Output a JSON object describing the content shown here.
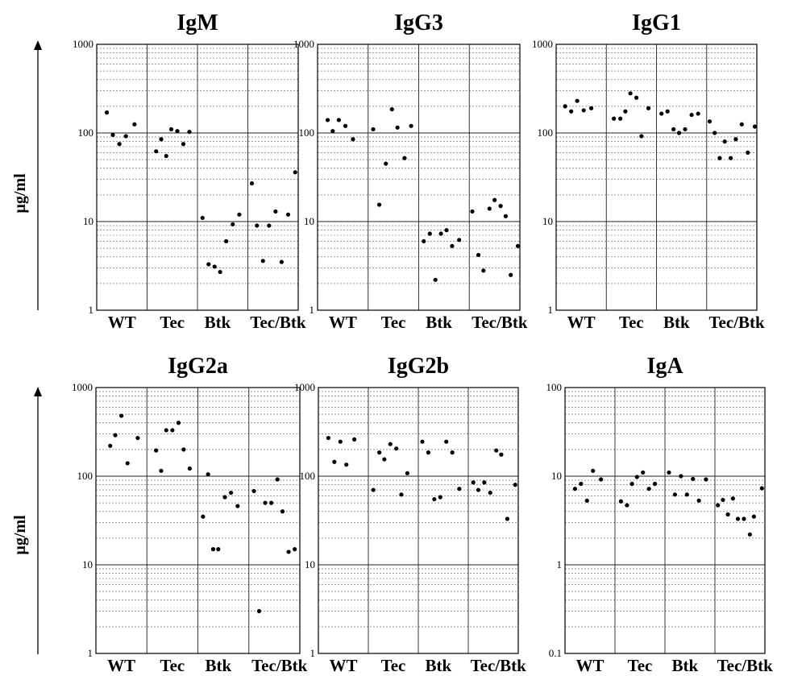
{
  "figure": {
    "y_axis_label": "µg/ml",
    "categories": [
      "WT",
      "Tec",
      "Btk",
      "Tec/Btk"
    ]
  },
  "chart_data": [
    {
      "type": "scatter",
      "title": "IgM",
      "ylabel": "µg/ml",
      "yscale": "log",
      "ylim": [
        1,
        1000
      ],
      "yticks": [
        "1",
        "10",
        "100",
        "1000"
      ],
      "categories": [
        "WT",
        "Tec",
        "Btk",
        "Tec/Btk"
      ],
      "grid": true,
      "points": [
        {
          "category": "WT",
          "x": 0.2,
          "y": 170
        },
        {
          "category": "WT",
          "x": 0.32,
          "y": 95
        },
        {
          "category": "WT",
          "x": 0.45,
          "y": 75
        },
        {
          "category": "WT",
          "x": 0.58,
          "y": 92
        },
        {
          "category": "WT",
          "x": 0.75,
          "y": 125
        },
        {
          "category": "Tec",
          "x": 0.18,
          "y": 62
        },
        {
          "category": "Tec",
          "x": 0.28,
          "y": 85
        },
        {
          "category": "Tec",
          "x": 0.38,
          "y": 55
        },
        {
          "category": "Tec",
          "x": 0.48,
          "y": 110
        },
        {
          "category": "Tec",
          "x": 0.6,
          "y": 105
        },
        {
          "category": "Tec",
          "x": 0.72,
          "y": 75
        },
        {
          "category": "Tec",
          "x": 0.84,
          "y": 103
        },
        {
          "category": "Btk",
          "x": 0.1,
          "y": 11
        },
        {
          "category": "Btk",
          "x": 0.22,
          "y": 3.3
        },
        {
          "category": "Btk",
          "x": 0.34,
          "y": 3.1
        },
        {
          "category": "Btk",
          "x": 0.45,
          "y": 2.7
        },
        {
          "category": "Btk",
          "x": 0.57,
          "y": 6
        },
        {
          "category": "Btk",
          "x": 0.7,
          "y": 9.3
        },
        {
          "category": "Btk",
          "x": 0.83,
          "y": 12
        },
        {
          "category": "Tec/Btk",
          "x": 0.08,
          "y": 27
        },
        {
          "category": "Tec/Btk",
          "x": 0.18,
          "y": 9
        },
        {
          "category": "Tec/Btk",
          "x": 0.3,
          "y": 3.6
        },
        {
          "category": "Tec/Btk",
          "x": 0.42,
          "y": 9
        },
        {
          "category": "Tec/Btk",
          "x": 0.55,
          "y": 13
        },
        {
          "category": "Tec/Btk",
          "x": 0.67,
          "y": 3.5
        },
        {
          "category": "Tec/Btk",
          "x": 0.8,
          "y": 12
        },
        {
          "category": "Tec/Btk",
          "x": 0.94,
          "y": 36
        }
      ]
    },
    {
      "type": "scatter",
      "title": "IgG3",
      "ylabel": "",
      "yscale": "log",
      "ylim": [
        1,
        1000
      ],
      "yticks": [
        "1",
        "10",
        "100",
        "1000"
      ],
      "categories": [
        "WT",
        "Tec",
        "Btk",
        "Tec/Btk"
      ],
      "grid": true,
      "points": [
        {
          "category": "WT",
          "x": 0.2,
          "y": 140
        },
        {
          "category": "WT",
          "x": 0.3,
          "y": 105
        },
        {
          "category": "WT",
          "x": 0.42,
          "y": 140
        },
        {
          "category": "WT",
          "x": 0.55,
          "y": 120
        },
        {
          "category": "WT",
          "x": 0.7,
          "y": 85
        },
        {
          "category": "Tec",
          "x": 0.1,
          "y": 110
        },
        {
          "category": "Tec",
          "x": 0.22,
          "y": 15.5
        },
        {
          "category": "Tec",
          "x": 0.35,
          "y": 45
        },
        {
          "category": "Tec",
          "x": 0.47,
          "y": 185
        },
        {
          "category": "Tec",
          "x": 0.58,
          "y": 115
        },
        {
          "category": "Tec",
          "x": 0.72,
          "y": 52
        },
        {
          "category": "Tec",
          "x": 0.85,
          "y": 120
        },
        {
          "category": "Btk",
          "x": 0.1,
          "y": 6
        },
        {
          "category": "Btk",
          "x": 0.22,
          "y": 7.3
        },
        {
          "category": "Btk",
          "x": 0.33,
          "y": 2.2
        },
        {
          "category": "Btk",
          "x": 0.44,
          "y": 7.3
        },
        {
          "category": "Btk",
          "x": 0.55,
          "y": 8
        },
        {
          "category": "Btk",
          "x": 0.66,
          "y": 5.3
        },
        {
          "category": "Btk",
          "x": 0.8,
          "y": 6.2
        },
        {
          "category": "Tec/Btk",
          "x": 0.06,
          "y": 13
        },
        {
          "category": "Tec/Btk",
          "x": 0.18,
          "y": 4.2
        },
        {
          "category": "Tec/Btk",
          "x": 0.28,
          "y": 2.8
        },
        {
          "category": "Tec/Btk",
          "x": 0.4,
          "y": 14
        },
        {
          "category": "Tec/Btk",
          "x": 0.5,
          "y": 17.5
        },
        {
          "category": "Tec/Btk",
          "x": 0.62,
          "y": 15
        },
        {
          "category": "Tec/Btk",
          "x": 0.72,
          "y": 11.5
        },
        {
          "category": "Tec/Btk",
          "x": 0.82,
          "y": 2.5
        },
        {
          "category": "Tec/Btk",
          "x": 0.96,
          "y": 5.3
        }
      ]
    },
    {
      "type": "scatter",
      "title": "IgG1",
      "ylabel": "",
      "yscale": "log",
      "ylim": [
        1,
        1000
      ],
      "yticks": [
        "1",
        "10",
        "100",
        "1000"
      ],
      "categories": [
        "WT",
        "Tec",
        "Btk",
        "Tec/Btk"
      ],
      "grid": true,
      "points": [
        {
          "category": "WT",
          "x": 0.18,
          "y": 200
        },
        {
          "category": "WT",
          "x": 0.3,
          "y": 175
        },
        {
          "category": "WT",
          "x": 0.42,
          "y": 230
        },
        {
          "category": "WT",
          "x": 0.55,
          "y": 180
        },
        {
          "category": "WT",
          "x": 0.7,
          "y": 190
        },
        {
          "category": "Tec",
          "x": 0.15,
          "y": 145
        },
        {
          "category": "Tec",
          "x": 0.28,
          "y": 145
        },
        {
          "category": "Tec",
          "x": 0.38,
          "y": 175
        },
        {
          "category": "Tec",
          "x": 0.48,
          "y": 280
        },
        {
          "category": "Tec",
          "x": 0.6,
          "y": 250
        },
        {
          "category": "Tec",
          "x": 0.7,
          "y": 92
        },
        {
          "category": "Tec",
          "x": 0.84,
          "y": 190
        },
        {
          "category": "Btk",
          "x": 0.1,
          "y": 165
        },
        {
          "category": "Btk",
          "x": 0.22,
          "y": 175
        },
        {
          "category": "Btk",
          "x": 0.34,
          "y": 110
        },
        {
          "category": "Btk",
          "x": 0.45,
          "y": 100
        },
        {
          "category": "Btk",
          "x": 0.57,
          "y": 110
        },
        {
          "category": "Btk",
          "x": 0.7,
          "y": 160
        },
        {
          "category": "Btk",
          "x": 0.83,
          "y": 165
        },
        {
          "category": "Tec/Btk",
          "x": 0.06,
          "y": 135
        },
        {
          "category": "Tec/Btk",
          "x": 0.16,
          "y": 100
        },
        {
          "category": "Tec/Btk",
          "x": 0.26,
          "y": 52
        },
        {
          "category": "Tec/Btk",
          "x": 0.36,
          "y": 80
        },
        {
          "category": "Tec/Btk",
          "x": 0.48,
          "y": 52
        },
        {
          "category": "Tec/Btk",
          "x": 0.58,
          "y": 85
        },
        {
          "category": "Tec/Btk",
          "x": 0.7,
          "y": 125
        },
        {
          "category": "Tec/Btk",
          "x": 0.82,
          "y": 60
        },
        {
          "category": "Tec/Btk",
          "x": 0.96,
          "y": 118
        }
      ]
    },
    {
      "type": "scatter",
      "title": "IgG2a",
      "ylabel": "µg/ml",
      "yscale": "log",
      "ylim": [
        1,
        1000
      ],
      "yticks": [
        "1",
        "10",
        "100",
        "1000"
      ],
      "categories": [
        "WT",
        "Tec",
        "Btk",
        "Tec/Btk"
      ],
      "grid": true,
      "points": [
        {
          "category": "WT",
          "x": 0.28,
          "y": 220
        },
        {
          "category": "WT",
          "x": 0.38,
          "y": 290
        },
        {
          "category": "WT",
          "x": 0.5,
          "y": 480
        },
        {
          "category": "WT",
          "x": 0.62,
          "y": 140
        },
        {
          "category": "WT",
          "x": 0.82,
          "y": 270
        },
        {
          "category": "Tec",
          "x": 0.18,
          "y": 195
        },
        {
          "category": "Tec",
          "x": 0.28,
          "y": 115
        },
        {
          "category": "Tec",
          "x": 0.38,
          "y": 330
        },
        {
          "category": "Tec",
          "x": 0.5,
          "y": 330
        },
        {
          "category": "Tec",
          "x": 0.62,
          "y": 400
        },
        {
          "category": "Tec",
          "x": 0.72,
          "y": 200
        },
        {
          "category": "Tec",
          "x": 0.84,
          "y": 122
        },
        {
          "category": "Btk",
          "x": 0.1,
          "y": 35
        },
        {
          "category": "Btk",
          "x": 0.2,
          "y": 105
        },
        {
          "category": "Btk",
          "x": 0.3,
          "y": 15
        },
        {
          "category": "Btk",
          "x": 0.4,
          "y": 15
        },
        {
          "category": "Btk",
          "x": 0.53,
          "y": 58
        },
        {
          "category": "Btk",
          "x": 0.65,
          "y": 65
        },
        {
          "category": "Btk",
          "x": 0.78,
          "y": 46
        },
        {
          "category": "Tec/Btk",
          "x": 0.1,
          "y": 68
        },
        {
          "category": "Tec/Btk",
          "x": 0.2,
          "y": 3
        },
        {
          "category": "Tec/Btk",
          "x": 0.32,
          "y": 50
        },
        {
          "category": "Tec/Btk",
          "x": 0.44,
          "y": 50
        },
        {
          "category": "Tec/Btk",
          "x": 0.56,
          "y": 92
        },
        {
          "category": "Tec/Btk",
          "x": 0.66,
          "y": 40
        },
        {
          "category": "Tec/Btk",
          "x": 0.78,
          "y": 14
        },
        {
          "category": "Tec/Btk",
          "x": 0.9,
          "y": 15
        }
      ]
    },
    {
      "type": "scatter",
      "title": "IgG2b",
      "ylabel": "",
      "yscale": "log",
      "ylim": [
        1,
        1000
      ],
      "yticks": [
        "1",
        "10",
        "100",
        "1000"
      ],
      "categories": [
        "WT",
        "Tec",
        "Btk",
        "Tec/Btk"
      ],
      "grid": true,
      "points": [
        {
          "category": "WT",
          "x": 0.2,
          "y": 270
        },
        {
          "category": "WT",
          "x": 0.32,
          "y": 145
        },
        {
          "category": "WT",
          "x": 0.44,
          "y": 245
        },
        {
          "category": "WT",
          "x": 0.56,
          "y": 135
        },
        {
          "category": "WT",
          "x": 0.72,
          "y": 260
        },
        {
          "category": "Tec",
          "x": 0.1,
          "y": 70
        },
        {
          "category": "Tec",
          "x": 0.22,
          "y": 185
        },
        {
          "category": "Tec",
          "x": 0.32,
          "y": 155
        },
        {
          "category": "Tec",
          "x": 0.44,
          "y": 230
        },
        {
          "category": "Tec",
          "x": 0.56,
          "y": 205
        },
        {
          "category": "Tec",
          "x": 0.66,
          "y": 62
        },
        {
          "category": "Tec",
          "x": 0.78,
          "y": 108
        },
        {
          "category": "Btk",
          "x": 0.08,
          "y": 245
        },
        {
          "category": "Btk",
          "x": 0.2,
          "y": 185
        },
        {
          "category": "Btk",
          "x": 0.32,
          "y": 55
        },
        {
          "category": "Btk",
          "x": 0.44,
          "y": 58
        },
        {
          "category": "Btk",
          "x": 0.56,
          "y": 245
        },
        {
          "category": "Btk",
          "x": 0.68,
          "y": 185
        },
        {
          "category": "Btk",
          "x": 0.82,
          "y": 72
        },
        {
          "category": "Tec/Btk",
          "x": 0.1,
          "y": 85
        },
        {
          "category": "Tec/Btk",
          "x": 0.2,
          "y": 70
        },
        {
          "category": "Tec/Btk",
          "x": 0.32,
          "y": 85
        },
        {
          "category": "Tec/Btk",
          "x": 0.44,
          "y": 65
        },
        {
          "category": "Tec/Btk",
          "x": 0.56,
          "y": 195
        },
        {
          "category": "Tec/Btk",
          "x": 0.66,
          "y": 175
        },
        {
          "category": "Tec/Btk",
          "x": 0.78,
          "y": 33
        },
        {
          "category": "Tec/Btk",
          "x": 0.94,
          "y": 80
        }
      ]
    },
    {
      "type": "scatter",
      "title": "IgA",
      "ylabel": "",
      "yscale": "log",
      "ylim": [
        0.1,
        100
      ],
      "yticks": [
        "0.1",
        "1",
        "10",
        "100"
      ],
      "categories": [
        "WT",
        "Tec",
        "Btk",
        "Tec/Btk"
      ],
      "grid": true,
      "points": [
        {
          "category": "WT",
          "x": 0.2,
          "y": 7.2
        },
        {
          "category": "WT",
          "x": 0.32,
          "y": 8.2
        },
        {
          "category": "WT",
          "x": 0.44,
          "y": 5.3
        },
        {
          "category": "WT",
          "x": 0.56,
          "y": 11.5
        },
        {
          "category": "WT",
          "x": 0.72,
          "y": 9.2
        },
        {
          "category": "Tec",
          "x": 0.12,
          "y": 5.2
        },
        {
          "category": "Tec",
          "x": 0.24,
          "y": 4.7
        },
        {
          "category": "Tec",
          "x": 0.34,
          "y": 8.2
        },
        {
          "category": "Tec",
          "x": 0.44,
          "y": 9.8
        },
        {
          "category": "Tec",
          "x": 0.56,
          "y": 11
        },
        {
          "category": "Tec",
          "x": 0.68,
          "y": 7.2
        },
        {
          "category": "Tec",
          "x": 0.8,
          "y": 8.2
        },
        {
          "category": "Btk",
          "x": 0.08,
          "y": 11
        },
        {
          "category": "Btk",
          "x": 0.2,
          "y": 6.2
        },
        {
          "category": "Btk",
          "x": 0.32,
          "y": 10
        },
        {
          "category": "Btk",
          "x": 0.44,
          "y": 6.2
        },
        {
          "category": "Btk",
          "x": 0.56,
          "y": 9.3
        },
        {
          "category": "Btk",
          "x": 0.68,
          "y": 5.3
        },
        {
          "category": "Btk",
          "x": 0.82,
          "y": 9.2
        },
        {
          "category": "Tec/Btk",
          "x": 0.06,
          "y": 4.7
        },
        {
          "category": "Tec/Btk",
          "x": 0.16,
          "y": 5.4
        },
        {
          "category": "Tec/Btk",
          "x": 0.26,
          "y": 3.7
        },
        {
          "category": "Tec/Btk",
          "x": 0.36,
          "y": 5.6
        },
        {
          "category": "Tec/Btk",
          "x": 0.46,
          "y": 3.3
        },
        {
          "category": "Tec/Btk",
          "x": 0.58,
          "y": 3.3
        },
        {
          "category": "Tec/Btk",
          "x": 0.7,
          "y": 2.2
        },
        {
          "category": "Tec/Btk",
          "x": 0.78,
          "y": 3.5
        },
        {
          "category": "Tec/Btk",
          "x": 0.94,
          "y": 7.3
        }
      ]
    }
  ]
}
